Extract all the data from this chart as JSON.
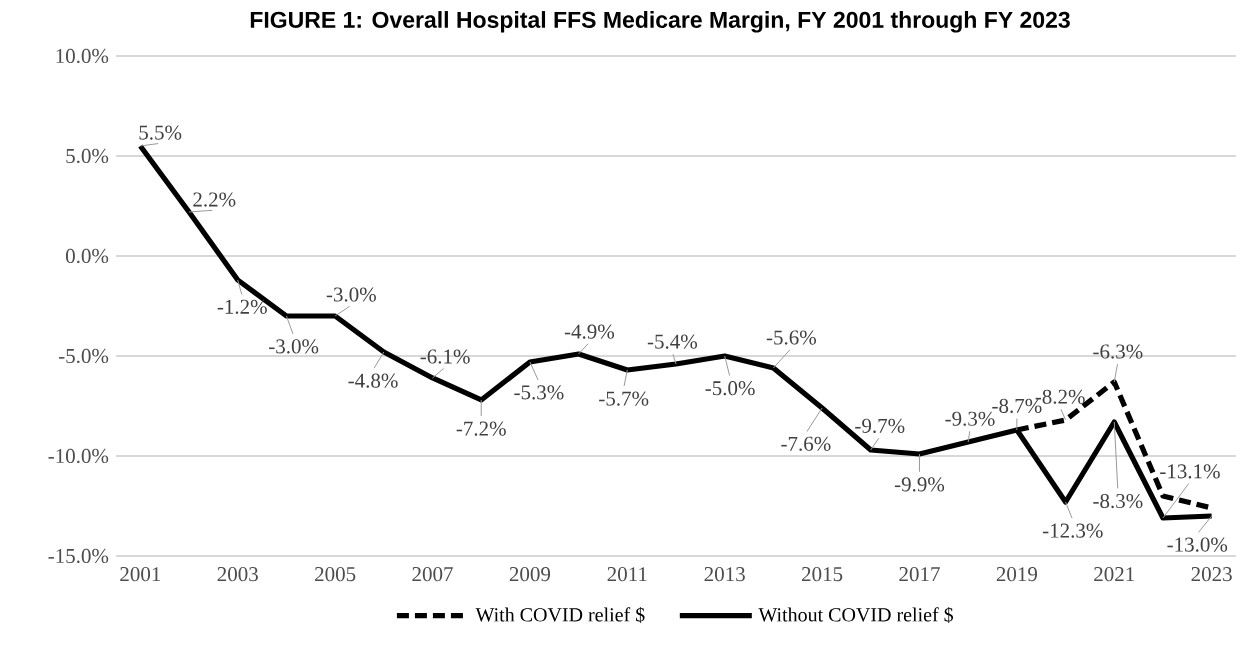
{
  "chart_data": {
    "type": "line",
    "title": "FIGURE 1: Overall Hospital FFS Medicare Margin, FY 2001 through FY 2023",
    "x": [
      2001,
      2002,
      2003,
      2004,
      2005,
      2006,
      2007,
      2008,
      2009,
      2010,
      2011,
      2012,
      2013,
      2014,
      2015,
      2016,
      2017,
      2018,
      2019,
      2020,
      2021,
      2022,
      2023
    ],
    "xlim": [
      2000.5,
      2023.5
    ],
    "xticks": [
      2001,
      2003,
      2005,
      2007,
      2009,
      2011,
      2013,
      2015,
      2017,
      2019,
      2021,
      2023
    ],
    "ylim": [
      -15,
      10
    ],
    "yticks": [
      {
        "value": -15,
        "label": "-15.0%"
      },
      {
        "value": -10,
        "label": "-10.0%"
      },
      {
        "value": -5,
        "label": "-5.0%"
      },
      {
        "value": 0,
        "label": "0.0%"
      },
      {
        "value": 5,
        "label": "5.0%"
      },
      {
        "value": 10,
        "label": "10.0%"
      }
    ],
    "grid": "y",
    "legend": "bottom",
    "series": [
      {
        "name": "With COVID relief $",
        "color": "#000000",
        "line_style": "dashed",
        "values": [
          null,
          null,
          null,
          null,
          null,
          null,
          null,
          null,
          null,
          null,
          null,
          null,
          null,
          null,
          null,
          null,
          null,
          null,
          -8.7,
          -8.2,
          -6.3,
          -12.0,
          -12.6
        ],
        "value_labels": [
          null,
          null,
          null,
          null,
          null,
          null,
          null,
          null,
          null,
          null,
          null,
          null,
          null,
          null,
          null,
          null,
          null,
          null,
          null,
          "-8.2%",
          "-6.3%",
          null,
          null
        ]
      },
      {
        "name": "Without COVID relief $",
        "color": "#000000",
        "line_style": "solid",
        "values": [
          5.5,
          2.2,
          -1.2,
          -3.0,
          -3.0,
          -4.8,
          -6.1,
          -7.2,
          -5.3,
          -4.9,
          -5.7,
          -5.4,
          -5.0,
          -5.6,
          -7.6,
          -9.7,
          -9.9,
          -9.3,
          -8.7,
          -12.3,
          -8.3,
          -13.1,
          -13.0
        ],
        "value_labels": [
          "5.5%",
          "2.2%",
          "-1.2%",
          "-3.0%",
          "-3.0%",
          "-4.8%",
          "-6.1%",
          "-7.2%",
          "-5.3%",
          "-4.9%",
          "-5.7%",
          "-5.4%",
          "-5.0%",
          "-5.6%",
          "-7.6%",
          "-9.7%",
          "-9.9%",
          "-9.3%",
          "-8.7%",
          "-12.3%",
          "-8.3%",
          "-13.1%",
          "-13.0%"
        ]
      }
    ]
  }
}
